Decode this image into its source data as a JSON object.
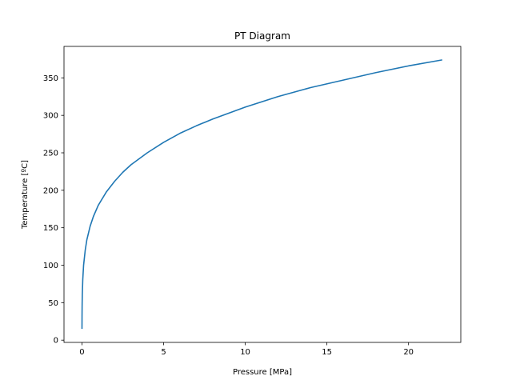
{
  "chart_data": {
    "type": "line",
    "title": "PT Diagram",
    "xlabel": "Pressure [MPa]",
    "ylabel": "Temperature [ºC]",
    "xlim": [
      -1.1,
      23.2
    ],
    "ylim": [
      -3,
      392
    ],
    "xticks": [
      0,
      5,
      10,
      15,
      20
    ],
    "yticks": [
      0,
      50,
      100,
      150,
      200,
      250,
      300,
      350
    ],
    "grid": false,
    "series_color": "#1f77b4",
    "series": [
      {
        "x": [
          0.0017,
          0.002,
          0.005,
          0.01,
          0.02,
          0.05,
          0.1,
          0.2,
          0.3,
          0.5,
          0.7,
          1.0,
          1.5,
          2.0,
          2.5,
          3.0,
          4.0,
          5.0,
          6.0,
          7.0,
          8.0,
          9.0,
          10.0,
          12.0,
          14.0,
          16.0,
          18.0,
          20.0,
          22.06
        ],
        "y": [
          15,
          17.5,
          33,
          46,
          60,
          81,
          100,
          120,
          134,
          152,
          165,
          180,
          198,
          212,
          224,
          234,
          250,
          264,
          276,
          286,
          295,
          303,
          311,
          325,
          337,
          347,
          357,
          366,
          374
        ]
      }
    ]
  }
}
